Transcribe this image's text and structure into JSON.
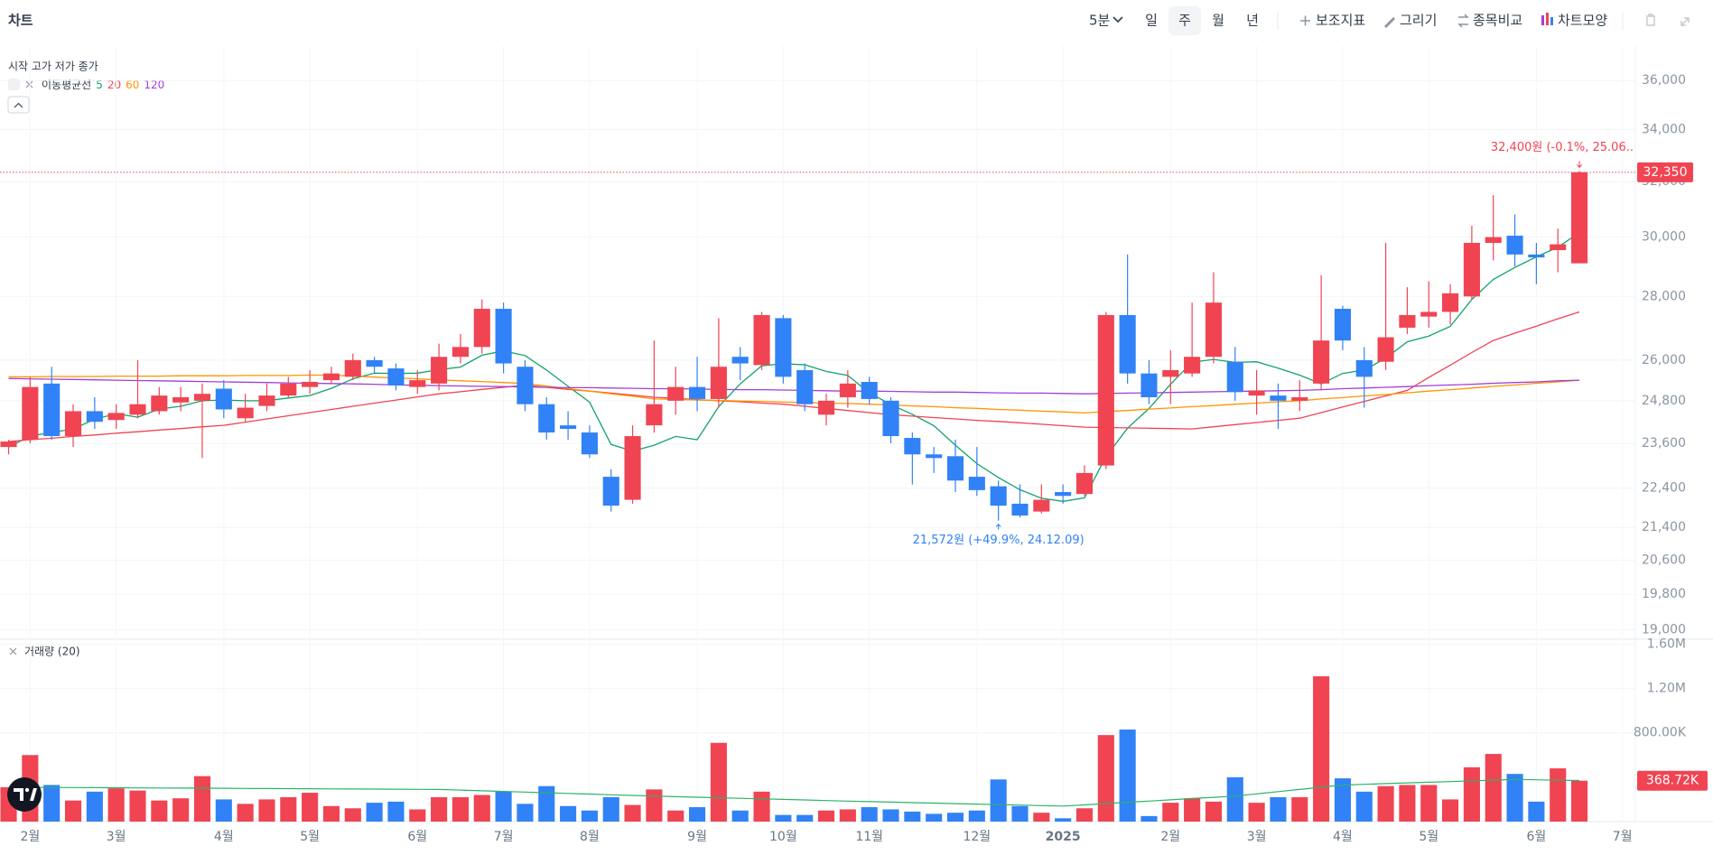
{
  "header": {
    "title": "차트",
    "interval": "5분",
    "periods": [
      "일",
      "주",
      "월",
      "년"
    ],
    "tools": [
      "보조지표",
      "그리기",
      "종목비교",
      "차트모양"
    ]
  },
  "chart_data": {
    "type": "candlestick",
    "ohlc_label": "시작 고가 저가 종가",
    "categories": [
      null,
      "2월",
      null,
      null,
      null,
      "3월",
      null,
      null,
      null,
      null,
      "4월",
      null,
      null,
      null,
      "5월",
      null,
      null,
      null,
      null,
      "6월",
      null,
      null,
      null,
      "7월",
      null,
      null,
      null,
      "8월",
      null,
      null,
      null,
      null,
      "9월",
      null,
      null,
      null,
      "10월",
      null,
      null,
      null,
      "11월",
      null,
      null,
      null,
      null,
      "12월",
      null,
      null,
      null,
      "2025",
      null,
      null,
      null,
      null,
      "2월",
      null,
      null,
      null,
      "3월",
      null,
      null,
      null,
      "4월",
      null,
      null,
      null,
      "5월",
      null,
      null,
      null,
      null,
      "6월",
      null,
      null,
      null,
      "7월"
    ],
    "open": [
      23500,
      23700,
      25300,
      23800,
      24500,
      24250,
      24400,
      24500,
      24750,
      24800,
      25150,
      24300,
      24650,
      24950,
      25200,
      25400,
      25500,
      26000,
      25750,
      25200,
      25300,
      26100,
      26400,
      27600,
      25800,
      24700,
      24100,
      23900,
      22700,
      22100,
      24100,
      24800,
      25200,
      24850,
      26100,
      25850,
      27300,
      25700,
      24400,
      24900,
      25350,
      24800,
      23750,
      23300,
      23250,
      22700,
      22450,
      22000,
      21800,
      22300,
      22250,
      23000,
      27400,
      25600,
      25500,
      25600,
      26100,
      25950,
      24950,
      24950,
      24800,
      25300,
      27600,
      26000,
      25950,
      27000,
      27350,
      27500,
      28000,
      29800,
      30050,
      29400,
      29550,
      29100,
      null,
      null
    ],
    "high": [
      23700,
      25500,
      25800,
      24700,
      24900,
      24700,
      26000,
      25200,
      25200,
      25300,
      25400,
      25000,
      25300,
      25500,
      25700,
      25800,
      26200,
      26100,
      25900,
      25700,
      26500,
      26800,
      27900,
      27800,
      26000,
      24900,
      24500,
      24100,
      22900,
      24100,
      26600,
      25800,
      26100,
      27300,
      26400,
      27500,
      27400,
      25900,
      25000,
      25700,
      25500,
      24900,
      23900,
      23500,
      23700,
      23500,
      22600,
      22500,
      22500,
      22500,
      23000,
      27500,
      29400,
      26000,
      26300,
      27800,
      28800,
      26400,
      25700,
      25300,
      25400,
      28700,
      27700,
      26400,
      29800,
      28300,
      28500,
      28400,
      30400,
      31500,
      30800,
      29800,
      30300,
      32400,
      null,
      null
    ],
    "low": [
      23300,
      23600,
      23700,
      23500,
      24000,
      24000,
      24300,
      24400,
      24500,
      23200,
      24300,
      24200,
      24500,
      24900,
      25000,
      25300,
      25400,
      25600,
      25100,
      25000,
      25100,
      25900,
      26200,
      25600,
      24500,
      23700,
      23700,
      23200,
      21800,
      22000,
      23900,
      24400,
      24500,
      24600,
      25400,
      25700,
      25300,
      24500,
      24100,
      24600,
      24700,
      23600,
      22500,
      22800,
      22300,
      22200,
      21572,
      21650,
      21750,
      22000,
      22200,
      22900,
      25300,
      24700,
      24700,
      25500,
      25900,
      24800,
      24400,
      24000,
      24500,
      25100,
      26300,
      24600,
      25700,
      26800,
      27000,
      27100,
      27900,
      29200,
      29000,
      28400,
      28800,
      29100,
      null,
      null
    ],
    "close": [
      23650,
      25200,
      23800,
      24500,
      24200,
      24450,
      24700,
      24950,
      24900,
      25000,
      24550,
      24600,
      24950,
      25300,
      25350,
      25600,
      26000,
      25800,
      25250,
      25400,
      26100,
      26400,
      27600,
      25900,
      24700,
      23900,
      24000,
      23300,
      21950,
      23800,
      24700,
      25200,
      24850,
      25800,
      25900,
      27400,
      25500,
      24700,
      24800,
      25300,
      24850,
      23800,
      23300,
      23200,
      22600,
      22350,
      21950,
      21700,
      22100,
      22200,
      22800,
      27400,
      25600,
      24900,
      25700,
      26100,
      27800,
      25050,
      25100,
      24800,
      24900,
      26600,
      26600,
      25500,
      26700,
      27400,
      27500,
      28100,
      29800,
      30000,
      29400,
      29300,
      29750,
      32350,
      null,
      null
    ],
    "up_color": "#f04452",
    "down_color": "#3182f6",
    "log_scale": true,
    "grid": true,
    "ylim": [
      18850,
      37000
    ],
    "yticks": [
      {
        "value": 19000,
        "label": "19,000"
      },
      {
        "value": 19800,
        "label": "19,800"
      },
      {
        "value": 20600,
        "label": "20,600"
      },
      {
        "value": 21400,
        "label": "21,400"
      },
      {
        "value": 22400,
        "label": "22,400"
      },
      {
        "value": 23600,
        "label": "23,600"
      },
      {
        "value": 24800,
        "label": "24,800"
      },
      {
        "value": 26000,
        "label": "26,000"
      },
      {
        "value": 28000,
        "label": "28,000"
      },
      {
        "value": 30000,
        "label": "30,000"
      },
      {
        "value": 32000,
        "label": "32,000"
      },
      {
        "value": 34000,
        "label": "34,000"
      },
      {
        "value": 36000,
        "label": "36,000"
      }
    ],
    "last_price": {
      "value": 32350,
      "label": "32,350",
      "color": "#f04452"
    },
    "high_annotation": {
      "value": 32400,
      "label": "32,400원 (-0.1%, 25.06..",
      "color": "#f04452"
    },
    "low_annotation": {
      "value": 21572,
      "label": "21,572원 (+49.9%, 24.12.09)",
      "color": "#3182f6"
    },
    "moving_averages": {
      "label": "이동평균선",
      "series": [
        {
          "name": "5",
          "color": "#12a36b",
          "values": [
            23500,
            23800,
            23900,
            24000,
            24270,
            24430,
            24330,
            24560,
            24640,
            24800,
            24820,
            24800,
            24800,
            24880,
            24950,
            25160,
            25440,
            25610,
            25600,
            25610,
            25710,
            25790,
            26150,
            26280,
            26140,
            25700,
            25220,
            24760,
            23570,
            23390,
            23550,
            23790,
            23700,
            24630,
            25290,
            25830,
            25890,
            25860,
            25660,
            25540,
            25030,
            24690,
            24410,
            24090,
            23550,
            23050,
            22680,
            22360,
            22140,
            22060,
            22150,
            23240,
            24020,
            24580,
            25280,
            25940,
            26020,
            25930,
            25950,
            25760,
            25550,
            25290,
            25600,
            25700,
            26060,
            26560,
            26740,
            27040,
            27900,
            28560,
            28960,
            29320,
            29650,
            30160,
            null,
            null
          ]
        },
        {
          "name": "20",
          "color": "#f04452",
          "values": [
            23650,
            23700,
            23740,
            23790,
            23830,
            23880,
            23920,
            23970,
            24010,
            24060,
            24100,
            24190,
            24280,
            24370,
            24460,
            24550,
            24640,
            24730,
            24820,
            24910,
            25000,
            25060,
            25130,
            25190,
            25250,
            25190,
            25130,
            25080,
            25020,
            24960,
            24900,
            24870,
            24830,
            24800,
            24770,
            24730,
            24700,
            24640,
            24580,
            24520,
            24460,
            24400,
            24360,
            24320,
            24280,
            24240,
            24210,
            24170,
            24130,
            24090,
            24050,
            24040,
            24030,
            24020,
            24010,
            24000,
            24060,
            24120,
            24180,
            24240,
            24300,
            24460,
            24620,
            24780,
            24940,
            25100,
            25480,
            25850,
            26230,
            26600,
            26830,
            27050,
            27280,
            27500,
            null,
            null
          ]
        },
        {
          "name": "60",
          "color": "#ff9500",
          "values": [
            25500,
            25500,
            25510,
            25510,
            25510,
            25520,
            25520,
            25520,
            25530,
            25530,
            25530,
            25540,
            25540,
            25540,
            25550,
            25550,
            25520,
            25490,
            25470,
            25440,
            25410,
            25380,
            25360,
            25330,
            25300,
            25230,
            25150,
            25080,
            25000,
            24930,
            24850,
            24840,
            24820,
            24810,
            24790,
            24780,
            24760,
            24750,
            24730,
            24720,
            24700,
            24680,
            24650,
            24630,
            24600,
            24580,
            24550,
            24530,
            24500,
            24480,
            24450,
            24490,
            24520,
            24560,
            24590,
            24630,
            24660,
            24700,
            24730,
            24770,
            24800,
            24850,
            24890,
            24940,
            24980,
            25030,
            25080,
            25120,
            25170,
            25220,
            25260,
            25310,
            25350,
            25400,
            null,
            null
          ]
        },
        {
          "name": "120",
          "color": "#a23fd6",
          "values": [
            25450,
            25440,
            25430,
            25420,
            25410,
            25400,
            25390,
            25380,
            25370,
            25360,
            25350,
            25340,
            25330,
            25320,
            25310,
            25300,
            25290,
            25280,
            25260,
            25250,
            25240,
            25230,
            25220,
            25210,
            25200,
            25190,
            25180,
            25180,
            25170,
            25160,
            25150,
            25150,
            25140,
            25130,
            25120,
            25120,
            25110,
            25100,
            25090,
            25080,
            25080,
            25070,
            25060,
            25050,
            25050,
            25040,
            25030,
            25020,
            25020,
            25010,
            25000,
            25010,
            25020,
            25030,
            25040,
            25050,
            25060,
            25070,
            25080,
            25090,
            25100,
            25120,
            25150,
            25170,
            25190,
            25210,
            25240,
            25260,
            25280,
            25310,
            25330,
            25350,
            25380,
            25400,
            null,
            null
          ]
        }
      ]
    },
    "volume": {
      "name": "거래량 (20)",
      "values": [
        310000,
        600000,
        330000,
        190000,
        270000,
        300000,
        280000,
        190000,
        210000,
        410000,
        200000,
        160000,
        200000,
        220000,
        260000,
        140000,
        120000,
        170000,
        180000,
        110000,
        220000,
        220000,
        240000,
        270000,
        160000,
        320000,
        140000,
        100000,
        220000,
        150000,
        290000,
        100000,
        130000,
        710000,
        100000,
        270000,
        60000,
        60000,
        100000,
        110000,
        130000,
        110000,
        90000,
        70000,
        80000,
        100000,
        380000,
        140000,
        80000,
        30000,
        120000,
        780000,
        830000,
        50000,
        170000,
        210000,
        180000,
        400000,
        170000,
        220000,
        220000,
        1310000,
        390000,
        270000,
        320000,
        330000,
        330000,
        200000,
        490000,
        610000,
        430000,
        180000,
        480000,
        368720,
        null,
        null
      ],
      "ma_color": "#2bb36b",
      "ma_values": [
        310000,
        309000,
        308000,
        307000,
        306000,
        305000,
        304000,
        303000,
        302000,
        301000,
        300000,
        299000,
        298000,
        297000,
        296000,
        295000,
        294000,
        293000,
        292000,
        291000,
        290000,
        284000,
        278000,
        272000,
        266000,
        260000,
        254000,
        248000,
        242000,
        236000,
        230000,
        225000,
        220000,
        215000,
        210000,
        205000,
        200000,
        195000,
        190000,
        185000,
        180000,
        176000,
        171000,
        167000,
        162000,
        158000,
        153000,
        149000,
        144000,
        140000,
        151000,
        163000,
        174000,
        185000,
        196000,
        208000,
        219000,
        230000,
        250000,
        270000,
        290000,
        310000,
        330000,
        336000,
        343000,
        349000,
        355000,
        361000,
        368000,
        374000,
        380000,
        377000,
        373000,
        370000,
        null,
        null
      ],
      "ylim": [
        0,
        1620000
      ],
      "yticks": [
        {
          "value": 800000,
          "label": "800.00K"
        },
        {
          "value": 1200000,
          "label": "1.20M"
        },
        {
          "value": 1600000,
          "label": "1.60M"
        }
      ],
      "last": {
        "value": 368720,
        "label": "368.72K",
        "color": "#f04452"
      }
    }
  }
}
